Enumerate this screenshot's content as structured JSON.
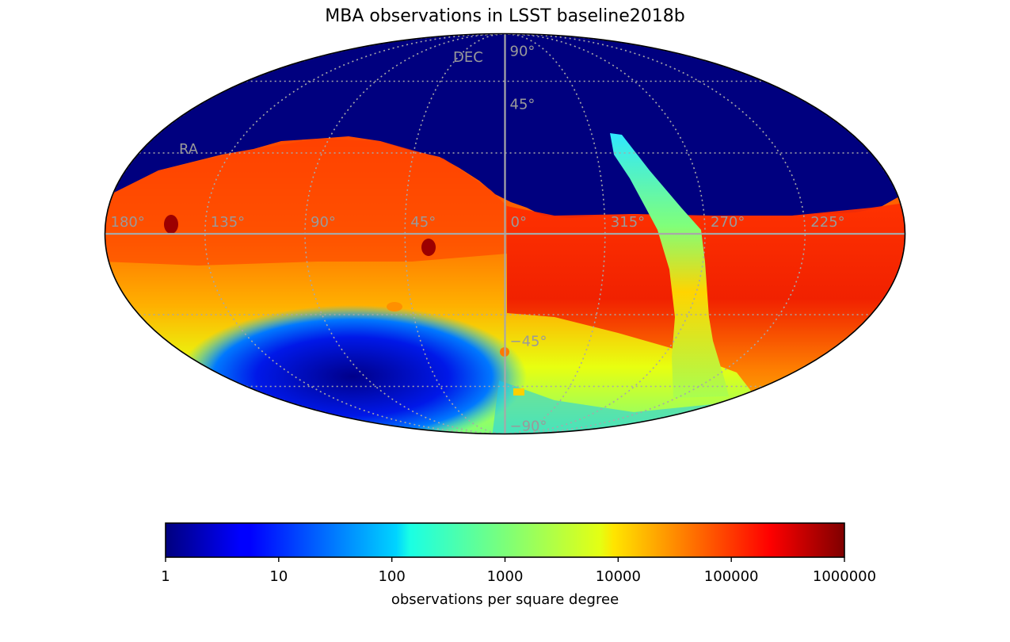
{
  "chart_data": {
    "type": "heatmap",
    "projection": "mollweide",
    "title": "MBA observations in LSST baseline2018b",
    "axes": {
      "ra_axis_label": "RA",
      "dec_axis_label": "DEC",
      "ra_tick_labels": [
        "180°",
        "135°",
        "90°",
        "45°",
        "0°",
        "315°",
        "270°",
        "225°"
      ],
      "ra_tick_values": [
        180,
        135,
        90,
        45,
        0,
        315,
        270,
        225
      ],
      "dec_tick_labels": [
        "90°",
        "45°",
        "−45°",
        "−90°"
      ],
      "dec_tick_values": [
        90,
        45,
        -45,
        -90
      ],
      "ra_grid_lines": [
        180,
        135,
        90,
        45,
        0,
        315,
        270,
        225
      ],
      "dec_grid_lines": [
        60,
        30,
        0,
        -30,
        -60
      ],
      "grid": true,
      "grid_style": "dotted"
    },
    "colorbar": {
      "orientation": "horizontal",
      "placement": "bottom",
      "scale": "log",
      "colormap": "jet",
      "range": [
        1,
        1000000
      ],
      "tick_values": [
        1,
        10,
        100,
        1000,
        10000,
        100000,
        1000000
      ],
      "tick_labels": [
        "1",
        "10",
        "100",
        "1000",
        "10000",
        "100000",
        "1000000"
      ],
      "label": "observations per square degree"
    },
    "regions": [
      {
        "ra": 180,
        "dec": 0,
        "value": 300000
      },
      {
        "ra": 172,
        "dec": 3,
        "value": 800000
      },
      {
        "ra": 32,
        "dec": -4,
        "value": 700000
      },
      {
        "ra": 55,
        "dec": -25,
        "value": 30000
      },
      {
        "ra": 0,
        "dec": -48,
        "value": 30000
      },
      {
        "ra": 290,
        "dec": 15,
        "value": 500
      },
      {
        "ra": 290,
        "dec": -40,
        "value": 1000
      },
      {
        "ra": 265,
        "dec": -25,
        "value": 200000
      },
      {
        "ra": 110,
        "dec": -65,
        "value": 5
      }
    ]
  }
}
